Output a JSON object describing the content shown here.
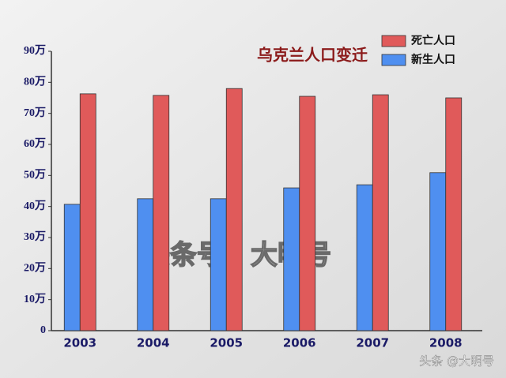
{
  "chart_data": {
    "type": "bar",
    "title": "乌克兰人口变迁",
    "categories": [
      "2003",
      "2004",
      "2005",
      "2006",
      "2007",
      "2008"
    ],
    "series": [
      {
        "name": "新生人口",
        "color": "#4f8ff0",
        "values": [
          40.7,
          42.5,
          42.5,
          46,
          47,
          50.9
        ]
      },
      {
        "name": "死亡人口",
        "color": "#e05a5a",
        "values": [
          76.3,
          75.8,
          78,
          75.5,
          76,
          75
        ]
      }
    ],
    "ylim": [
      0,
      90
    ],
    "yticks": [
      0,
      {
        "value": 10,
        "label": "10万"
      },
      {
        "value": 20,
        "label": "20万"
      },
      {
        "value": 30,
        "label": "30万"
      },
      {
        "value": 40,
        "label": "40万"
      },
      {
        "value": 50,
        "label": "50万"
      },
      {
        "value": 60,
        "label": "60万"
      },
      {
        "value": 70,
        "label": "70万"
      },
      {
        "value": 80,
        "label": "80万"
      },
      {
        "value": 90,
        "label": "90万"
      }
    ],
    "grid": false,
    "watermark": "头条号：大明号",
    "credit": "头条 @大明号"
  }
}
